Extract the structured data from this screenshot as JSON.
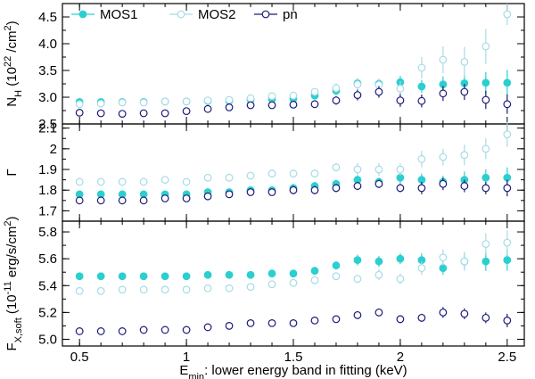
{
  "chart_data": {
    "type": "scatter",
    "layout": "three vertically stacked panels sharing the x axis",
    "xlabel": "E_min: lower energy band in fitting (keV)",
    "xlabel_parts": {
      "main": "E",
      "sub": "min",
      "rest": ": lower energy band in fitting (keV)"
    },
    "xlim": [
      0.42,
      2.58
    ],
    "xticks": [
      0.5,
      1.0,
      1.5,
      2.0,
      2.5
    ],
    "xtick_labels": [
      "0.5",
      "1",
      "1.5",
      "2",
      "2.5"
    ],
    "x": [
      0.5,
      0.6,
      0.7,
      0.8,
      0.9,
      1.0,
      1.1,
      1.2,
      1.3,
      1.4,
      1.5,
      1.6,
      1.7,
      1.8,
      1.9,
      2.0,
      2.1,
      2.2,
      2.3,
      2.4,
      2.5
    ],
    "series_styles": [
      {
        "name": "MOS1",
        "color": "#2ccfcf",
        "marker": "filled-circle"
      },
      {
        "name": "MOS2",
        "color": "#a6dbe6",
        "marker": "open-circle"
      },
      {
        "name": "pn",
        "color": "#1c1c7a",
        "marker": "open-circle"
      }
    ],
    "legend": {
      "entries": [
        "MOS1",
        "MOS2",
        "pn"
      ],
      "placement": "top-left"
    },
    "panels": [
      {
        "id": "nh",
        "ylabel": "N_H (10^22 /cm^2)",
        "ylabel_parts": {
          "main": "N",
          "sub": "H",
          "pre": " (10",
          "sup1": "22",
          "mid": " /cm",
          "sup2": "2",
          "post": ")"
        },
        "ylim": [
          2.5,
          4.75
        ],
        "yticks": [
          2.5,
          3.0,
          3.5,
          4.0,
          4.5
        ],
        "ytick_labels": [
          "2.5",
          "3.0",
          "3.5",
          "4.0",
          "4.5"
        ],
        "series": [
          {
            "name": "MOS1",
            "values": [
              2.91,
              2.91,
              2.91,
              2.91,
              2.92,
              2.92,
              2.93,
              2.93,
              2.95,
              2.96,
              2.97,
              3.03,
              3.12,
              3.26,
              3.25,
              3.28,
              3.2,
              3.24,
              3.26,
              3.27,
              3.27
            ],
            "errors": [
              0.03,
              0.03,
              0.03,
              0.03,
              0.03,
              0.03,
              0.03,
              0.03,
              0.04,
              0.04,
              0.05,
              0.06,
              0.08,
              0.09,
              0.1,
              0.12,
              0.12,
              0.15,
              0.18,
              0.2,
              0.24
            ]
          },
          {
            "name": "MOS2",
            "values": [
              2.87,
              2.88,
              2.9,
              2.9,
              2.92,
              2.92,
              2.94,
              2.95,
              2.98,
              3.02,
              3.03,
              3.1,
              3.17,
              3.24,
              3.23,
              3.16,
              3.55,
              3.7,
              3.66,
              3.95,
              4.55
            ],
            "errors": [
              0.03,
              0.03,
              0.03,
              0.03,
              0.03,
              0.03,
              0.03,
              0.04,
              0.05,
              0.05,
              0.06,
              0.07,
              0.09,
              0.1,
              0.12,
              0.14,
              0.2,
              0.25,
              0.28,
              0.33,
              0.2
            ]
          },
          {
            "name": "pn",
            "values": [
              2.71,
              2.7,
              2.69,
              2.7,
              2.7,
              2.74,
              2.78,
              2.81,
              2.85,
              2.85,
              2.86,
              2.87,
              2.94,
              3.04,
              3.1,
              2.94,
              2.93,
              3.07,
              3.1,
              2.95,
              2.87
            ],
            "errors": [
              0.03,
              0.03,
              0.03,
              0.03,
              0.03,
              0.03,
              0.03,
              0.04,
              0.04,
              0.05,
              0.05,
              0.06,
              0.08,
              0.1,
              0.11,
              0.12,
              0.12,
              0.14,
              0.15,
              0.17,
              0.18
            ]
          }
        ]
      },
      {
        "id": "gamma",
        "ylabel": "Γ",
        "ylim": [
          1.65,
          2.12
        ],
        "yticks": [
          1.7,
          1.8,
          1.9,
          2.0,
          2.1
        ],
        "ytick_labels": [
          "1.7",
          "1.8",
          "1.9",
          "2",
          "2.1"
        ],
        "series": [
          {
            "name": "MOS1",
            "values": [
              1.78,
              1.78,
              1.78,
              1.78,
              1.78,
              1.78,
              1.79,
              1.79,
              1.8,
              1.8,
              1.81,
              1.82,
              1.83,
              1.85,
              1.84,
              1.86,
              1.85,
              1.84,
              1.85,
              1.86,
              1.86
            ],
            "errors": [
              0.01,
              0.01,
              0.01,
              0.01,
              0.01,
              0.01,
              0.01,
              0.01,
              0.01,
              0.01,
              0.02,
              0.02,
              0.02,
              0.02,
              0.02,
              0.03,
              0.03,
              0.03,
              0.04,
              0.04,
              0.05
            ]
          },
          {
            "name": "MOS2",
            "values": [
              1.84,
              1.84,
              1.84,
              1.84,
              1.85,
              1.84,
              1.86,
              1.86,
              1.87,
              1.88,
              1.88,
              1.88,
              1.91,
              1.9,
              1.9,
              1.9,
              1.95,
              1.96,
              1.97,
              2.0,
              2.07
            ],
            "errors": [
              0.01,
              0.01,
              0.01,
              0.01,
              0.01,
              0.01,
              0.01,
              0.01,
              0.01,
              0.02,
              0.02,
              0.02,
              0.02,
              0.03,
              0.03,
              0.03,
              0.04,
              0.04,
              0.05,
              0.05,
              0.06
            ]
          },
          {
            "name": "pn",
            "values": [
              1.75,
              1.75,
              1.75,
              1.75,
              1.76,
              1.76,
              1.77,
              1.78,
              1.79,
              1.79,
              1.8,
              1.8,
              1.81,
              1.82,
              1.83,
              1.81,
              1.81,
              1.83,
              1.82,
              1.81,
              1.81
            ],
            "errors": [
              0.01,
              0.01,
              0.01,
              0.01,
              0.01,
              0.01,
              0.01,
              0.01,
              0.01,
              0.01,
              0.02,
              0.02,
              0.02,
              0.02,
              0.02,
              0.02,
              0.03,
              0.03,
              0.03,
              0.03,
              0.04
            ]
          }
        ]
      },
      {
        "id": "flux",
        "ylabel": "F_X,soft (10^-11 erg/s/cm^2)",
        "ylabel_parts": {
          "main": "F",
          "sub": "X,soft",
          "pre": " (10",
          "sup1": "-11",
          "post": " erg/s/cm",
          "sup2": "2",
          "end": ")"
        },
        "ylim": [
          4.95,
          5.88
        ],
        "yticks": [
          5.0,
          5.2,
          5.4,
          5.6,
          5.8
        ],
        "ytick_labels": [
          "5.0",
          "5.2",
          "5.4",
          "5.6",
          "5.8"
        ],
        "series": [
          {
            "name": "MOS1",
            "values": [
              5.47,
              5.47,
              5.47,
              5.47,
              5.47,
              5.47,
              5.48,
              5.48,
              5.48,
              5.49,
              5.49,
              5.51,
              5.55,
              5.59,
              5.58,
              5.6,
              5.59,
              5.53,
              5.58,
              5.58,
              5.59
            ],
            "errors": [
              0.01,
              0.01,
              0.01,
              0.01,
              0.01,
              0.01,
              0.01,
              0.01,
              0.01,
              0.01,
              0.02,
              0.02,
              0.03,
              0.04,
              0.04,
              0.04,
              0.05,
              0.05,
              0.06,
              0.07,
              0.08
            ]
          },
          {
            "name": "MOS2",
            "values": [
              5.36,
              5.36,
              5.37,
              5.37,
              5.37,
              5.37,
              5.38,
              5.38,
              5.39,
              5.41,
              5.42,
              5.44,
              5.47,
              5.45,
              5.48,
              5.45,
              5.53,
              5.61,
              5.58,
              5.71,
              5.72
            ],
            "errors": [
              0.01,
              0.01,
              0.01,
              0.01,
              0.01,
              0.01,
              0.01,
              0.01,
              0.01,
              0.02,
              0.02,
              0.02,
              0.03,
              0.03,
              0.04,
              0.04,
              0.05,
              0.06,
              0.07,
              0.08,
              0.09
            ]
          },
          {
            "name": "pn",
            "values": [
              5.06,
              5.06,
              5.06,
              5.07,
              5.07,
              5.07,
              5.09,
              5.1,
              5.12,
              5.12,
              5.12,
              5.14,
              5.15,
              5.18,
              5.2,
              5.15,
              5.16,
              5.2,
              5.19,
              5.16,
              5.14
            ],
            "errors": [
              0.01,
              0.01,
              0.01,
              0.01,
              0.01,
              0.01,
              0.01,
              0.01,
              0.02,
              0.02,
              0.02,
              0.02,
              0.02,
              0.03,
              0.03,
              0.03,
              0.03,
              0.04,
              0.04,
              0.04,
              0.05
            ]
          }
        ]
      }
    ]
  }
}
